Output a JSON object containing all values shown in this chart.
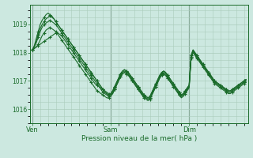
{
  "background_color": "#cce8e0",
  "grid_color": "#aaccbb",
  "line_color": "#1a6b2a",
  "marker": "+",
  "markersize": 3,
  "linewidth": 0.8,
  "xlabel": "Pression niveau de la mer( hPa )",
  "ylim": [
    1015.5,
    1019.7
  ],
  "yticks": [
    1016,
    1017,
    1018,
    1019
  ],
  "xtick_labels": [
    "Ven",
    "Sam",
    "Dim"
  ],
  "xtick_positions": [
    0,
    40,
    80
  ],
  "total_points": 110,
  "vline_positions": [
    0,
    40,
    80
  ],
  "series": [
    [
      1018.1,
      1018.15,
      1018.2,
      1018.25,
      1018.3,
      1018.35,
      1018.4,
      1018.45,
      1018.5,
      1018.55,
      1018.6,
      1018.65,
      1018.7,
      1018.7,
      1018.65,
      1018.6,
      1018.5,
      1018.4,
      1018.3,
      1018.2,
      1018.1,
      1018.0,
      1017.9,
      1017.8,
      1017.7,
      1017.6,
      1017.5,
      1017.4,
      1017.3,
      1017.2,
      1017.1,
      1017.0,
      1016.9,
      1016.85,
      1016.8,
      1016.75,
      1016.7,
      1016.65,
      1016.6,
      1016.55,
      1016.5,
      1016.55,
      1016.7,
      1016.85,
      1017.0,
      1017.15,
      1017.25,
      1017.3,
      1017.25,
      1017.2,
      1017.1,
      1017.0,
      1016.9,
      1016.8,
      1016.7,
      1016.6,
      1016.5,
      1016.45,
      1016.4,
      1016.35,
      1016.4,
      1016.5,
      1016.65,
      1016.8,
      1016.95,
      1017.1,
      1017.2,
      1017.25,
      1017.2,
      1017.1,
      1017.0,
      1016.9,
      1016.8,
      1016.7,
      1016.6,
      1016.5,
      1016.45,
      1016.5,
      1016.6,
      1016.7,
      1016.8,
      1017.85,
      1018.05,
      1017.95,
      1017.85,
      1017.75,
      1017.65,
      1017.55,
      1017.45,
      1017.35,
      1017.25,
      1017.15,
      1017.05,
      1016.95,
      1016.9,
      1016.85,
      1016.8,
      1016.75,
      1016.7,
      1016.65,
      1016.6,
      1016.6,
      1016.65,
      1016.7,
      1016.75,
      1016.8,
      1016.85,
      1016.9,
      1016.95,
      1017.0
    ],
    [
      1018.1,
      1018.15,
      1018.2,
      1018.3,
      1018.45,
      1018.6,
      1018.7,
      1018.8,
      1018.85,
      1018.9,
      1018.85,
      1018.8,
      1018.75,
      1018.65,
      1018.55,
      1018.45,
      1018.35,
      1018.25,
      1018.15,
      1018.05,
      1017.95,
      1017.85,
      1017.75,
      1017.65,
      1017.55,
      1017.45,
      1017.35,
      1017.25,
      1017.15,
      1017.05,
      1016.95,
      1016.85,
      1016.75,
      1016.65,
      1016.6,
      1016.55,
      1016.5,
      1016.45,
      1016.4,
      1016.4,
      1016.45,
      1016.55,
      1016.7,
      1016.85,
      1017.0,
      1017.15,
      1017.25,
      1017.3,
      1017.25,
      1017.2,
      1017.1,
      1017.0,
      1016.9,
      1016.8,
      1016.7,
      1016.6,
      1016.5,
      1016.4,
      1016.35,
      1016.3,
      1016.35,
      1016.5,
      1016.65,
      1016.8,
      1016.95,
      1017.1,
      1017.2,
      1017.25,
      1017.2,
      1017.1,
      1017.0,
      1016.9,
      1016.8,
      1016.7,
      1016.6,
      1016.5,
      1016.4,
      1016.45,
      1016.55,
      1016.65,
      1016.75,
      1017.8,
      1018.0,
      1017.9,
      1017.8,
      1017.7,
      1017.6,
      1017.5,
      1017.4,
      1017.3,
      1017.2,
      1017.1,
      1017.0,
      1016.9,
      1016.85,
      1016.8,
      1016.75,
      1016.7,
      1016.65,
      1016.6,
      1016.55,
      1016.55,
      1016.6,
      1016.65,
      1016.7,
      1016.75,
      1016.8,
      1016.85,
      1016.9,
      1016.95
    ],
    [
      1018.1,
      1018.2,
      1018.35,
      1018.55,
      1018.75,
      1018.9,
      1019.0,
      1019.05,
      1019.1,
      1019.15,
      1019.1,
      1019.05,
      1019.0,
      1018.9,
      1018.8,
      1018.7,
      1018.6,
      1018.5,
      1018.4,
      1018.3,
      1018.2,
      1018.1,
      1018.0,
      1017.9,
      1017.8,
      1017.7,
      1017.6,
      1017.5,
      1017.4,
      1017.3,
      1017.2,
      1017.1,
      1017.0,
      1016.9,
      1016.8,
      1016.7,
      1016.6,
      1016.55,
      1016.5,
      1016.45,
      1016.5,
      1016.6,
      1016.75,
      1016.9,
      1017.05,
      1017.2,
      1017.3,
      1017.35,
      1017.3,
      1017.25,
      1017.15,
      1017.05,
      1016.95,
      1016.85,
      1016.75,
      1016.65,
      1016.55,
      1016.45,
      1016.4,
      1016.35,
      1016.4,
      1016.55,
      1016.7,
      1016.85,
      1017.0,
      1017.15,
      1017.25,
      1017.3,
      1017.25,
      1017.15,
      1017.05,
      1016.95,
      1016.85,
      1016.75,
      1016.65,
      1016.55,
      1016.45,
      1016.5,
      1016.6,
      1016.7,
      1016.8,
      1017.85,
      1018.05,
      1017.95,
      1017.85,
      1017.75,
      1017.65,
      1017.55,
      1017.45,
      1017.35,
      1017.25,
      1017.15,
      1017.05,
      1016.95,
      1016.9,
      1016.85,
      1016.8,
      1016.75,
      1016.7,
      1016.65,
      1016.6,
      1016.6,
      1016.65,
      1016.7,
      1016.75,
      1016.8,
      1016.85,
      1016.9,
      1016.95,
      1017.0
    ],
    [
      1018.1,
      1018.2,
      1018.4,
      1018.65,
      1018.85,
      1019.0,
      1019.1,
      1019.2,
      1019.25,
      1019.3,
      1019.25,
      1019.2,
      1019.1,
      1019.0,
      1018.9,
      1018.8,
      1018.7,
      1018.6,
      1018.5,
      1018.4,
      1018.3,
      1018.2,
      1018.1,
      1018.0,
      1017.9,
      1017.8,
      1017.7,
      1017.6,
      1017.5,
      1017.4,
      1017.3,
      1017.2,
      1017.1,
      1017.0,
      1016.9,
      1016.8,
      1016.7,
      1016.6,
      1016.55,
      1016.5,
      1016.55,
      1016.65,
      1016.8,
      1016.95,
      1017.1,
      1017.25,
      1017.35,
      1017.4,
      1017.35,
      1017.3,
      1017.2,
      1017.1,
      1017.0,
      1016.9,
      1016.8,
      1016.7,
      1016.6,
      1016.5,
      1016.45,
      1016.4,
      1016.45,
      1016.6,
      1016.75,
      1016.9,
      1017.05,
      1017.2,
      1017.3,
      1017.35,
      1017.3,
      1017.2,
      1017.1,
      1017.0,
      1016.9,
      1016.8,
      1016.7,
      1016.6,
      1016.5,
      1016.55,
      1016.65,
      1016.75,
      1016.85,
      1017.9,
      1018.1,
      1018.0,
      1017.9,
      1017.8,
      1017.7,
      1017.6,
      1017.5,
      1017.4,
      1017.3,
      1017.2,
      1017.1,
      1017.0,
      1016.95,
      1016.9,
      1016.85,
      1016.8,
      1016.75,
      1016.7,
      1016.65,
      1016.65,
      1016.7,
      1016.75,
      1016.8,
      1016.85,
      1016.9,
      1016.95,
      1017.0,
      1017.05
    ],
    [
      1018.1,
      1018.25,
      1018.5,
      1018.75,
      1019.0,
      1019.15,
      1019.25,
      1019.35,
      1019.4,
      1019.35,
      1019.3,
      1019.2,
      1019.1,
      1019.0,
      1018.9,
      1018.8,
      1018.7,
      1018.6,
      1018.5,
      1018.4,
      1018.3,
      1018.2,
      1018.1,
      1018.0,
      1017.9,
      1017.8,
      1017.7,
      1017.6,
      1017.5,
      1017.4,
      1017.3,
      1017.2,
      1017.1,
      1017.0,
      1016.9,
      1016.8,
      1016.7,
      1016.6,
      1016.55,
      1016.5,
      1016.55,
      1016.65,
      1016.8,
      1016.95,
      1017.1,
      1017.25,
      1017.35,
      1017.4,
      1017.35,
      1017.3,
      1017.2,
      1017.1,
      1017.0,
      1016.9,
      1016.8,
      1016.7,
      1016.6,
      1016.5,
      1016.45,
      1016.4,
      1016.45,
      1016.6,
      1016.75,
      1016.9,
      1017.05,
      1017.2,
      1017.3,
      1017.35,
      1017.3,
      1017.2,
      1017.1,
      1017.0,
      1016.9,
      1016.8,
      1016.7,
      1016.6,
      1016.5,
      1016.55,
      1016.65,
      1016.75,
      1016.85,
      1017.9,
      1018.1,
      1018.0,
      1017.9,
      1017.8,
      1017.7,
      1017.6,
      1017.5,
      1017.4,
      1017.3,
      1017.2,
      1017.1,
      1017.0,
      1016.95,
      1016.9,
      1016.85,
      1016.8,
      1016.75,
      1016.7,
      1016.65,
      1016.65,
      1016.7,
      1016.75,
      1016.8,
      1016.85,
      1016.9,
      1016.95,
      1017.0,
      1017.05
    ]
  ]
}
